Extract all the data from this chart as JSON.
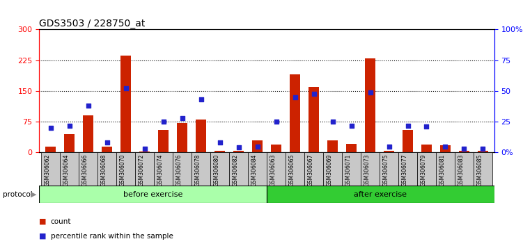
{
  "title": "GDS3503 / 228750_at",
  "samples": [
    "GSM306062",
    "GSM306064",
    "GSM306066",
    "GSM306068",
    "GSM306070",
    "GSM306072",
    "GSM306074",
    "GSM306076",
    "GSM306078",
    "GSM306080",
    "GSM306082",
    "GSM306084",
    "GSM306063",
    "GSM306065",
    "GSM306067",
    "GSM306069",
    "GSM306071",
    "GSM306073",
    "GSM306075",
    "GSM306077",
    "GSM306079",
    "GSM306081",
    "GSM306083",
    "GSM306085"
  ],
  "count": [
    15,
    45,
    90,
    15,
    237,
    3,
    55,
    72,
    80,
    5,
    5,
    30,
    20,
    190,
    160,
    30,
    22,
    230,
    5,
    55,
    20,
    18,
    5,
    4
  ],
  "percentile": [
    20,
    22,
    38,
    8,
    52,
    3,
    25,
    28,
    43,
    8,
    4,
    5,
    25,
    45,
    48,
    25,
    22,
    49,
    5,
    22,
    21,
    5,
    3,
    3
  ],
  "before_count": 12,
  "after_count": 12,
  "left_ylim": [
    0,
    300
  ],
  "right_ylim": [
    0,
    100
  ],
  "left_yticks": [
    0,
    75,
    150,
    225,
    300
  ],
  "right_yticks": [
    0,
    25,
    50,
    75,
    100
  ],
  "right_yticklabels": [
    "0%",
    "25",
    "50",
    "75",
    "100%"
  ],
  "bar_color": "#cc2200",
  "dot_color": "#2222cc",
  "before_bg": "#aaffaa",
  "after_bg": "#33cc33",
  "protocol_label": "protocol",
  "before_label": "before exercise",
  "after_label": "after exercise",
  "legend_count": "count",
  "legend_pct": "percentile rank within the sample",
  "axis_bg": "#ffffff",
  "title_fontsize": 10,
  "tick_fontsize": 8,
  "label_fontsize": 8
}
